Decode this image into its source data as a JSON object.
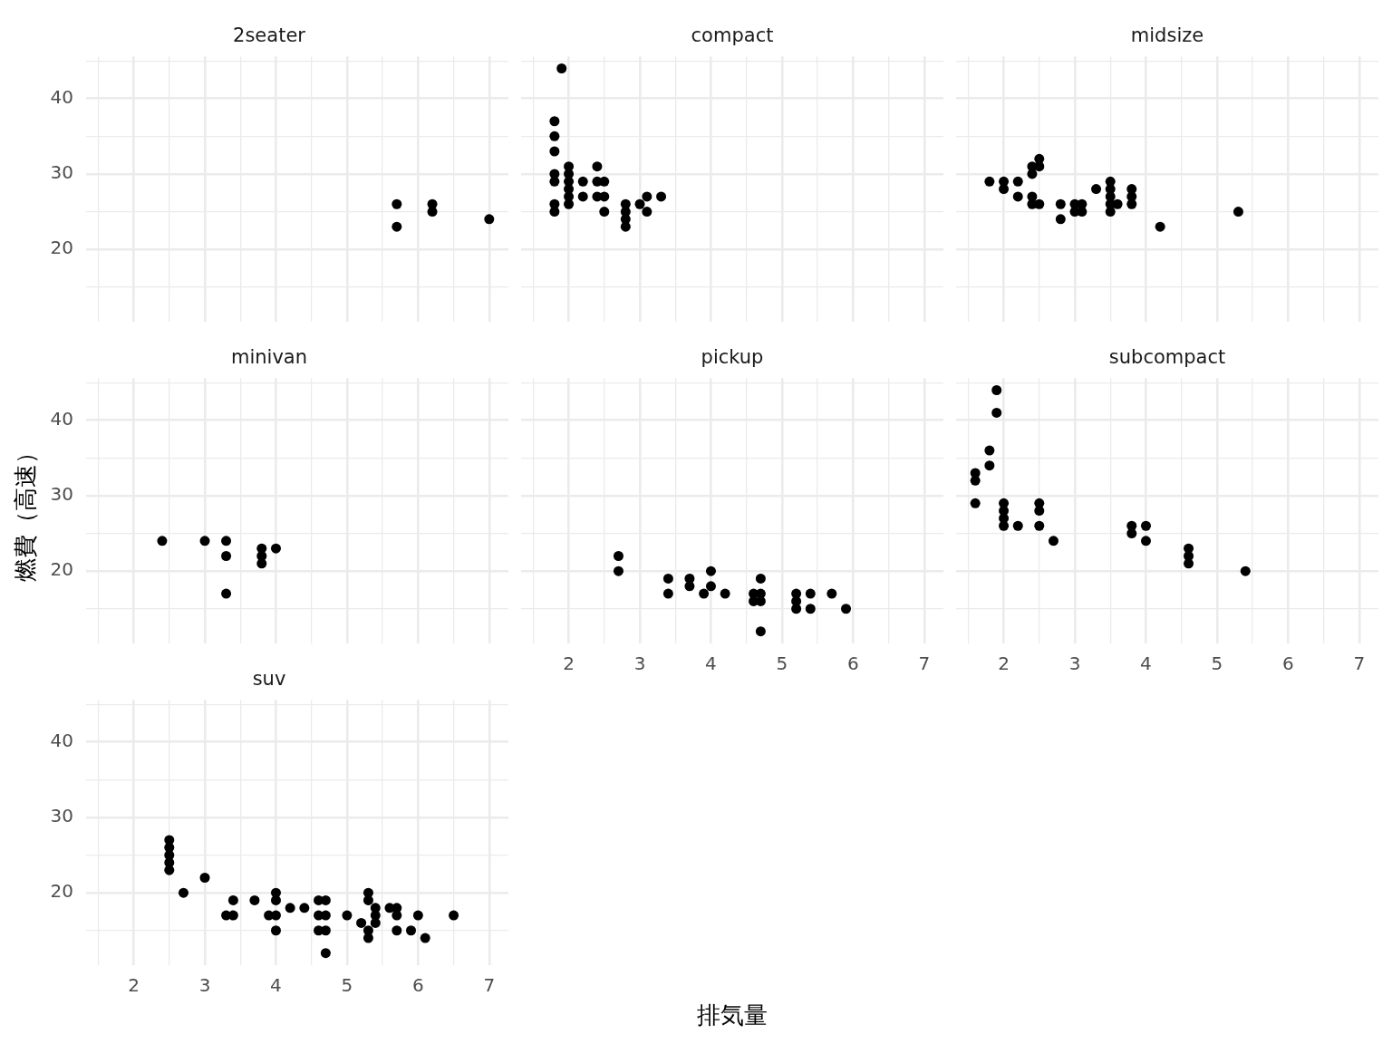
{
  "chart_data": [
    {
      "type": "scatter",
      "title": "2seater",
      "x": [
        5.7,
        5.7,
        6.2,
        6.2,
        7.0
      ],
      "values": [
        26,
        23,
        26,
        25,
        24
      ],
      "color": "#000000",
      "marker": "circle",
      "xlim": [
        1.33,
        7.27
      ],
      "ylim": [
        10.4,
        45.6
      ],
      "xticks": [
        {
          "value": 1.5,
          "label": null
        },
        2,
        {
          "value": 2.5,
          "label": null
        },
        3,
        {
          "value": 3.5,
          "label": null
        },
        4,
        {
          "value": 4.5,
          "label": null
        },
        5,
        {
          "value": 5.5,
          "label": null
        },
        6,
        {
          "value": 6.5,
          "label": null
        },
        7
      ],
      "yticks": [
        {
          "value": 15,
          "label": null
        },
        20,
        {
          "value": 25,
          "label": null
        },
        30,
        {
          "value": 35,
          "label": null
        },
        40,
        {
          "value": 45,
          "label": null
        }
      ],
      "grid": true,
      "tick_labels": "y"
    },
    {
      "type": "scatter",
      "title": "compact",
      "x": [
        1.8,
        1.8,
        1.8,
        1.8,
        1.8,
        1.8,
        1.8,
        1.9,
        2,
        2,
        2,
        2,
        2,
        2,
        2.2,
        2.2,
        2.4,
        2.4,
        2.4,
        2.5,
        2.5,
        2.5,
        2.8,
        2.8,
        2.8,
        2.8,
        3,
        3.1,
        3.1,
        3.3
      ],
      "values": [
        37,
        35,
        33,
        30,
        29,
        26,
        25,
        44,
        31,
        30,
        29,
        28,
        27,
        26,
        29,
        27,
        31,
        29,
        27,
        29,
        27,
        25,
        26,
        25,
        24,
        23,
        26,
        27,
        25,
        27
      ],
      "color": "#000000",
      "marker": "circle",
      "xlim": [
        1.33,
        7.27
      ],
      "ylim": [
        10.4,
        45.6
      ],
      "xticks": [
        {
          "value": 1.5,
          "label": null
        },
        2,
        {
          "value": 2.5,
          "label": null
        },
        3,
        {
          "value": 3.5,
          "label": null
        },
        4,
        {
          "value": 4.5,
          "label": null
        },
        5,
        {
          "value": 5.5,
          "label": null
        },
        6,
        {
          "value": 6.5,
          "label": null
        },
        7
      ],
      "yticks": [
        {
          "value": 15,
          "label": null
        },
        20,
        {
          "value": 25,
          "label": null
        },
        30,
        {
          "value": 35,
          "label": null
        },
        40,
        {
          "value": 45,
          "label": null
        }
      ],
      "grid": true,
      "tick_labels": false
    },
    {
      "type": "scatter",
      "title": "midsize",
      "x": [
        1.8,
        2,
        2,
        2.2,
        2.2,
        2.4,
        2.4,
        2.4,
        2.4,
        2.5,
        2.5,
        2.5,
        2.8,
        2.8,
        3,
        3,
        3.1,
        3.1,
        3.3,
        3.5,
        3.5,
        3.5,
        3.5,
        3.5,
        3.6,
        3.8,
        3.8,
        3.8,
        4.2,
        5.3
      ],
      "values": [
        29,
        29,
        28,
        29,
        27,
        31,
        30,
        27,
        26,
        32,
        31,
        26,
        26,
        24,
        26,
        25,
        26,
        25,
        28,
        29,
        28,
        27,
        26,
        25,
        26,
        28,
        27,
        26,
        23,
        25
      ],
      "color": "#000000",
      "marker": "circle",
      "xlim": [
        1.33,
        7.27
      ],
      "ylim": [
        10.4,
        45.6
      ],
      "xticks": [
        {
          "value": 1.5,
          "label": null
        },
        2,
        {
          "value": 2.5,
          "label": null
        },
        3,
        {
          "value": 3.5,
          "label": null
        },
        4,
        {
          "value": 4.5,
          "label": null
        },
        5,
        {
          "value": 5.5,
          "label": null
        },
        6,
        {
          "value": 6.5,
          "label": null
        },
        7
      ],
      "yticks": [
        {
          "value": 15,
          "label": null
        },
        20,
        {
          "value": 25,
          "label": null
        },
        30,
        {
          "value": 35,
          "label": null
        },
        40,
        {
          "value": 45,
          "label": null
        }
      ],
      "grid": true,
      "tick_labels": false
    },
    {
      "type": "scatter",
      "title": "minivan",
      "ylabel": "燃費（高速）",
      "x": [
        2.4,
        3,
        3.3,
        3.3,
        3.3,
        3.8,
        3.8,
        3.8,
        4
      ],
      "values": [
        24,
        24,
        24,
        22,
        17,
        23,
        22,
        21,
        23
      ],
      "color": "#000000",
      "marker": "circle",
      "xlim": [
        1.33,
        7.27
      ],
      "ylim": [
        10.4,
        45.6
      ],
      "xticks": [
        {
          "value": 1.5,
          "label": null
        },
        2,
        {
          "value": 2.5,
          "label": null
        },
        3,
        {
          "value": 3.5,
          "label": null
        },
        4,
        {
          "value": 4.5,
          "label": null
        },
        5,
        {
          "value": 5.5,
          "label": null
        },
        6,
        {
          "value": 6.5,
          "label": null
        },
        7
      ],
      "yticks": [
        {
          "value": 15,
          "label": null
        },
        20,
        {
          "value": 25,
          "label": null
        },
        30,
        {
          "value": 35,
          "label": null
        },
        40,
        {
          "value": 45,
          "label": null
        }
      ],
      "grid": true,
      "tick_labels": "y"
    },
    {
      "type": "scatter",
      "title": "pickup",
      "xlabel": "排気量",
      "x": [
        2.7,
        2.7,
        3.4,
        3.4,
        3.7,
        3.7,
        3.9,
        4,
        4,
        4.2,
        4.6,
        4.6,
        4.7,
        4.7,
        4.7,
        4.7,
        5.2,
        5.2,
        5.2,
        5.4,
        5.4,
        5.7,
        5.9
      ],
      "values": [
        22,
        20,
        19,
        17,
        19,
        18,
        17,
        20,
        18,
        17,
        17,
        16,
        19,
        17,
        16,
        12,
        17,
        16,
        15,
        17,
        15,
        17,
        15
      ],
      "color": "#000000",
      "marker": "circle",
      "xlim": [
        1.33,
        7.27
      ],
      "ylim": [
        10.4,
        45.6
      ],
      "xticks": [
        {
          "value": 1.5,
          "label": null
        },
        2,
        {
          "value": 2.5,
          "label": null
        },
        3,
        {
          "value": 3.5,
          "label": null
        },
        4,
        {
          "value": 4.5,
          "label": null
        },
        5,
        {
          "value": 5.5,
          "label": null
        },
        6,
        {
          "value": 6.5,
          "label": null
        },
        7
      ],
      "yticks": [
        {
          "value": 15,
          "label": null
        },
        20,
        {
          "value": 25,
          "label": null
        },
        30,
        {
          "value": 35,
          "label": null
        },
        40,
        {
          "value": 45,
          "label": null
        }
      ],
      "grid": true,
      "tick_labels": "x"
    },
    {
      "type": "scatter",
      "title": "subcompact",
      "x": [
        1.6,
        1.6,
        1.6,
        1.8,
        1.8,
        1.9,
        1.9,
        2,
        2,
        2,
        2,
        2.2,
        2.5,
        2.5,
        2.5,
        2.7,
        3.8,
        3.8,
        4,
        4,
        4.6,
        4.6,
        4.6,
        5.4
      ],
      "values": [
        33,
        32,
        29,
        36,
        34,
        44,
        41,
        29,
        28,
        27,
        26,
        26,
        29,
        28,
        26,
        24,
        26,
        25,
        26,
        24,
        23,
        22,
        21,
        20
      ],
      "color": "#000000",
      "marker": "circle",
      "xlim": [
        1.33,
        7.27
      ],
      "ylim": [
        10.4,
        45.6
      ],
      "xticks": [
        {
          "value": 1.5,
          "label": null
        },
        2,
        {
          "value": 2.5,
          "label": null
        },
        3,
        {
          "value": 3.5,
          "label": null
        },
        4,
        {
          "value": 4.5,
          "label": null
        },
        5,
        {
          "value": 5.5,
          "label": null
        },
        6,
        {
          "value": 6.5,
          "label": null
        },
        7
      ],
      "yticks": [
        {
          "value": 15,
          "label": null
        },
        20,
        {
          "value": 25,
          "label": null
        },
        30,
        {
          "value": 35,
          "label": null
        },
        40,
        {
          "value": 45,
          "label": null
        }
      ],
      "grid": true,
      "tick_labels": "x"
    },
    {
      "type": "scatter",
      "title": "suv",
      "x": [
        2.5,
        2.5,
        2.5,
        2.5,
        2.5,
        2.7,
        3,
        3.3,
        3.4,
        3.4,
        3.7,
        3.9,
        4,
        4,
        4,
        4,
        4.2,
        4.4,
        4.6,
        4.6,
        4.6,
        4.7,
        4.7,
        4.7,
        4.7,
        5,
        5.2,
        5.3,
        5.3,
        5.3,
        5.3,
        5.4,
        5.4,
        5.4,
        5.6,
        5.7,
        5.7,
        5.7,
        5.9,
        6,
        6.1,
        6.5
      ],
      "values": [
        27,
        26,
        25,
        24,
        23,
        20,
        22,
        17,
        19,
        17,
        19,
        17,
        20,
        19,
        17,
        15,
        18,
        18,
        19,
        17,
        15,
        19,
        17,
        15,
        12,
        17,
        16,
        20,
        19,
        15,
        14,
        18,
        17,
        16,
        18,
        18,
        17,
        15,
        15,
        17,
        14,
        17
      ],
      "color": "#000000",
      "marker": "circle",
      "xlim": [
        1.33,
        7.27
      ],
      "ylim": [
        10.4,
        45.6
      ],
      "xticks": [
        {
          "value": 1.5,
          "label": null
        },
        2,
        {
          "value": 2.5,
          "label": null
        },
        3,
        {
          "value": 3.5,
          "label": null
        },
        4,
        {
          "value": 4.5,
          "label": null
        },
        5,
        {
          "value": 5.5,
          "label": null
        },
        6,
        {
          "value": 6.5,
          "label": null
        },
        7
      ],
      "yticks": [
        {
          "value": 15,
          "label": null
        },
        20,
        {
          "value": 25,
          "label": null
        },
        30,
        {
          "value": 35,
          "label": null
        },
        40,
        {
          "value": 45,
          "label": null
        }
      ],
      "grid": true
    }
  ]
}
